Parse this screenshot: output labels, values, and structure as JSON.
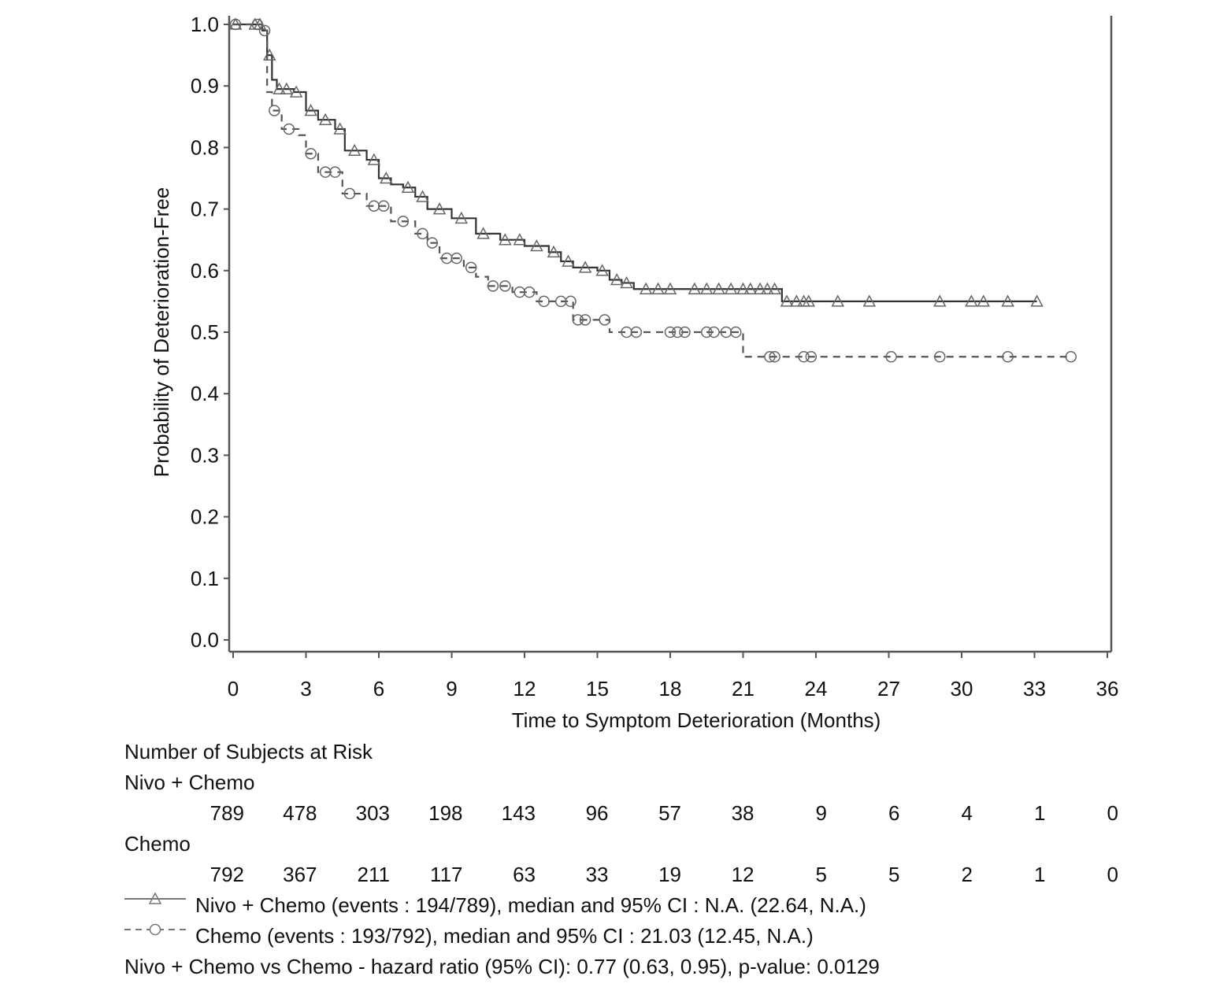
{
  "chart_data": {
    "type": "line",
    "subtype": "kaplan-meier",
    "xlabel": "Time to Symptom Deterioration (Months)",
    "ylabel": "Probability of Deterioration-Free",
    "xlim": [
      0,
      36
    ],
    "ylim": [
      0,
      1.0
    ],
    "xticks": [
      "0",
      "3",
      "6",
      "9",
      "12",
      "15",
      "18",
      "21",
      "24",
      "27",
      "30",
      "33",
      "36"
    ],
    "yticks": [
      "0.0",
      "0.1",
      "0.2",
      "0.3",
      "0.4",
      "0.5",
      "0.6",
      "0.7",
      "0.8",
      "0.9",
      "1.0"
    ],
    "grid": false,
    "colors": {
      "nivo": "#333333",
      "chemo": "#555555",
      "markers": "#666666"
    },
    "series": [
      {
        "name": "Nivo + Chemo",
        "style": "solid",
        "marker": "triangle",
        "steps": [
          [
            0,
            1.0
          ],
          [
            1.2,
            0.99
          ],
          [
            1.4,
            0.95
          ],
          [
            1.6,
            0.91
          ],
          [
            1.8,
            0.895
          ],
          [
            2.5,
            0.89
          ],
          [
            3.0,
            0.86
          ],
          [
            3.5,
            0.845
          ],
          [
            4.2,
            0.83
          ],
          [
            4.6,
            0.795
          ],
          [
            5.5,
            0.78
          ],
          [
            6.0,
            0.75
          ],
          [
            6.5,
            0.74
          ],
          [
            7.0,
            0.735
          ],
          [
            7.5,
            0.72
          ],
          [
            8.0,
            0.7
          ],
          [
            9.0,
            0.685
          ],
          [
            10.0,
            0.66
          ],
          [
            11.0,
            0.65
          ],
          [
            12.0,
            0.64
          ],
          [
            13.0,
            0.63
          ],
          [
            13.5,
            0.615
          ],
          [
            14.0,
            0.605
          ],
          [
            15.0,
            0.6
          ],
          [
            15.5,
            0.585
          ],
          [
            16.0,
            0.58
          ],
          [
            16.5,
            0.57
          ],
          [
            22.6,
            0.55
          ]
        ],
        "end": 33.1,
        "censored": [
          0.1,
          0.9,
          1.1,
          1.5,
          1.9,
          2.2,
          2.6,
          3.2,
          3.8,
          4.4,
          5.0,
          5.8,
          6.3,
          7.2,
          7.8,
          8.5,
          9.4,
          10.3,
          11.2,
          11.8,
          12.5,
          13.2,
          13.8,
          14.5,
          15.2,
          15.8,
          16.2,
          17.0,
          17.5,
          18.0,
          19.0,
          19.5,
          20.0,
          20.5,
          21.0,
          21.3,
          21.7,
          22.0,
          22.3,
          22.8,
          23.2,
          23.5,
          23.7,
          24.9,
          26.2,
          29.1,
          30.4,
          30.9,
          31.9,
          33.1
        ]
      },
      {
        "name": "Chemo",
        "style": "dashed",
        "marker": "circle",
        "steps": [
          [
            0,
            1.0
          ],
          [
            1.2,
            0.99
          ],
          [
            1.4,
            0.89
          ],
          [
            1.6,
            0.86
          ],
          [
            2.0,
            0.83
          ],
          [
            2.7,
            0.82
          ],
          [
            3.0,
            0.79
          ],
          [
            3.5,
            0.76
          ],
          [
            4.5,
            0.725
          ],
          [
            5.5,
            0.705
          ],
          [
            6.5,
            0.68
          ],
          [
            7.5,
            0.66
          ],
          [
            8.0,
            0.645
          ],
          [
            8.5,
            0.62
          ],
          [
            9.5,
            0.605
          ],
          [
            10.0,
            0.59
          ],
          [
            10.5,
            0.575
          ],
          [
            11.5,
            0.565
          ],
          [
            12.5,
            0.55
          ],
          [
            14.0,
            0.52
          ],
          [
            15.5,
            0.5
          ],
          [
            21.0,
            0.46
          ]
        ],
        "end": 34.5,
        "censored": [
          0.1,
          1.0,
          1.3,
          1.7,
          2.3,
          3.2,
          3.8,
          4.2,
          4.8,
          5.8,
          6.2,
          7.0,
          7.8,
          8.2,
          8.8,
          9.2,
          9.8,
          10.7,
          11.2,
          11.8,
          12.2,
          12.8,
          13.5,
          13.9,
          14.2,
          14.5,
          15.3,
          16.2,
          16.6,
          18.0,
          18.3,
          18.6,
          19.5,
          19.8,
          20.3,
          20.7,
          22.1,
          22.3,
          23.5,
          23.8,
          27.1,
          29.1,
          31.9,
          34.5
        ]
      }
    ],
    "risk_table": {
      "title": "Number of Subjects at Risk",
      "groups": [
        {
          "label": "Nivo + Chemo",
          "values": [
            "789",
            "478",
            "303",
            "198",
            "143",
            "96",
            "57",
            "38",
            "9",
            "6",
            "4",
            "1",
            "0"
          ]
        },
        {
          "label": "Chemo",
          "values": [
            "792",
            "367",
            "211",
            "117",
            "63",
            "33",
            "19",
            "12",
            "5",
            "5",
            "2",
            "1",
            "0"
          ]
        }
      ]
    },
    "legend": [
      "Nivo + Chemo (events : 194/789), median and 95% CI : N.A. (22.64, N.A.)",
      "Chemo (events : 193/792), median and 95% CI : 21.03 (12.45, N.A.)"
    ],
    "annotation": "Nivo + Chemo vs Chemo - hazard ratio (95% CI): 0.77 (0.63, 0.95), p-value: 0.0129"
  }
}
